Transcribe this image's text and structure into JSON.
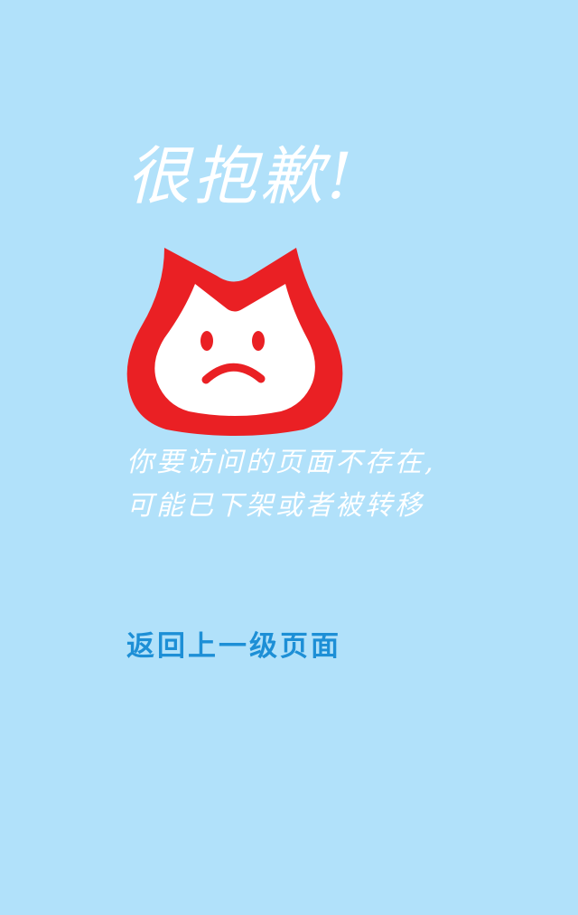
{
  "error_page": {
    "title": "很抱歉!",
    "message_line_1": "你要访问的页面不存在,",
    "message_line_2": "可能已下架或者被转移",
    "back_link_label": "返回上一级页面",
    "mascot_icon": "sad-cat-icon"
  },
  "colors": {
    "background": "#b1e1fa",
    "mascot_red": "#ea2024",
    "text_white": "#ffffff",
    "link_blue": "#1d8fd6"
  }
}
